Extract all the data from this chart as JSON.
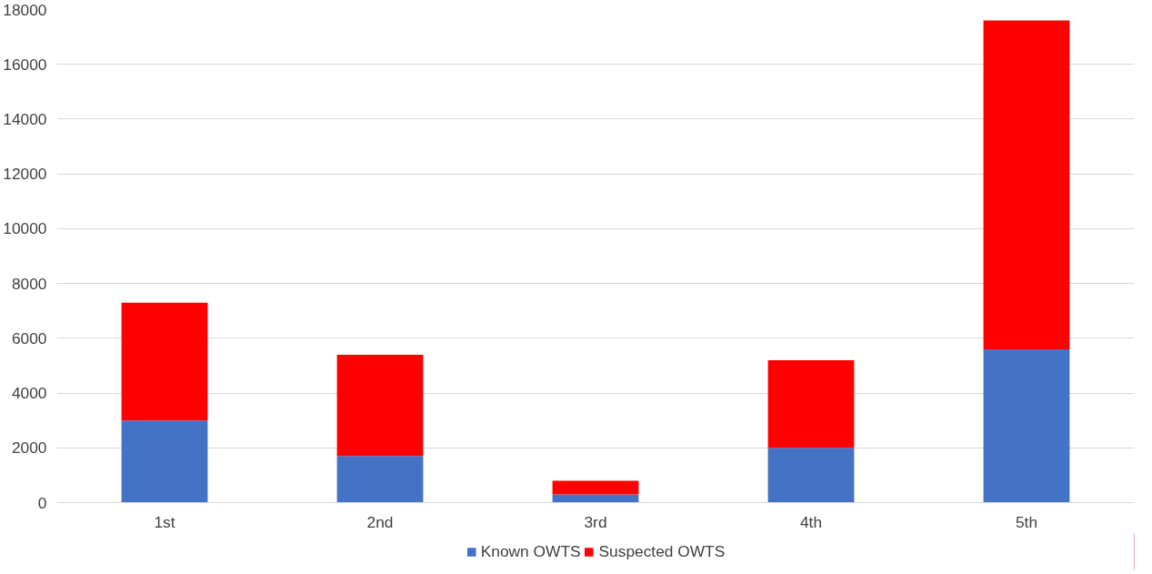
{
  "chart_data": {
    "type": "bar",
    "stacked": true,
    "categories": [
      "1st",
      "2nd",
      "3rd",
      "4th",
      "5th"
    ],
    "series": [
      {
        "name": "Known OWTS",
        "color": "#4472c4",
        "values": [
          3000,
          1700,
          300,
          2000,
          5600
        ]
      },
      {
        "name": "Suspected OWTS",
        "color": "#ff0000",
        "values": [
          4300,
          3700,
          500,
          3200,
          12000
        ]
      }
    ],
    "ylim": [
      0,
      18000
    ],
    "yticks": [
      0,
      2000,
      4000,
      6000,
      8000,
      10000,
      12000,
      14000,
      16000,
      18000
    ],
    "grid": "y",
    "legend": "bottom"
  }
}
